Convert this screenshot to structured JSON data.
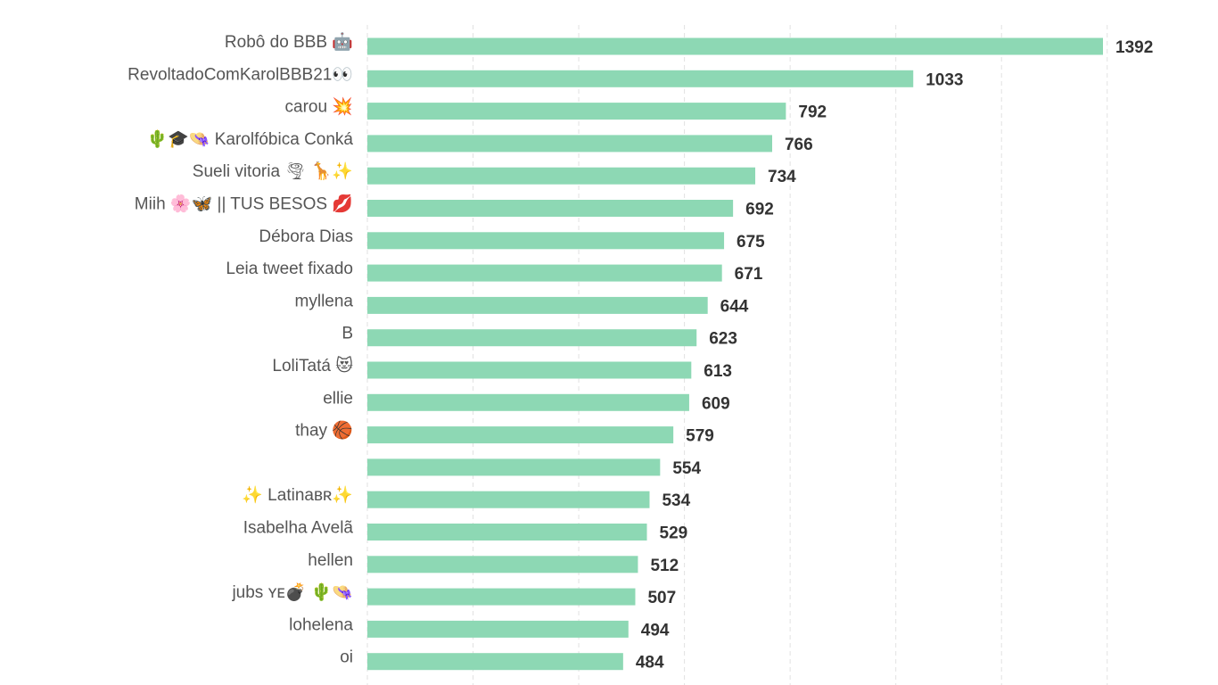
{
  "chart_data": {
    "type": "bar",
    "orientation": "horizontal",
    "title": "",
    "xlabel": "",
    "ylabel": "",
    "xlim": [
      0,
      1400
    ],
    "grid": true,
    "grid_step": 200,
    "bar_color": "#8dd8b4",
    "categories": [
      "Robô do BBB 🤖",
      "RevoltadoComKarolBBB21👀",
      "carou 💥",
      "🌵🎓👒 Karolfóbica Conká",
      "Sueli vitoria 🌪 🦒✨",
      "Miih 🌸🦋 || TUS BESOS 💋",
      "Débora Dias",
      "Leia tweet fixado",
      "myllena",
      "B",
      "LoliTatá 😻",
      "ellie",
      "thay 🏀",
      "",
      "✨ Latinaʙʀ✨",
      "Isabelha Avelã",
      "hellen",
      "jubs ʏᴇ💣 🌵👒",
      "lohelena",
      "oi"
    ],
    "values": [
      1392,
      1033,
      792,
      766,
      734,
      692,
      675,
      671,
      644,
      623,
      613,
      609,
      579,
      554,
      534,
      529,
      512,
      507,
      494,
      484
    ]
  }
}
